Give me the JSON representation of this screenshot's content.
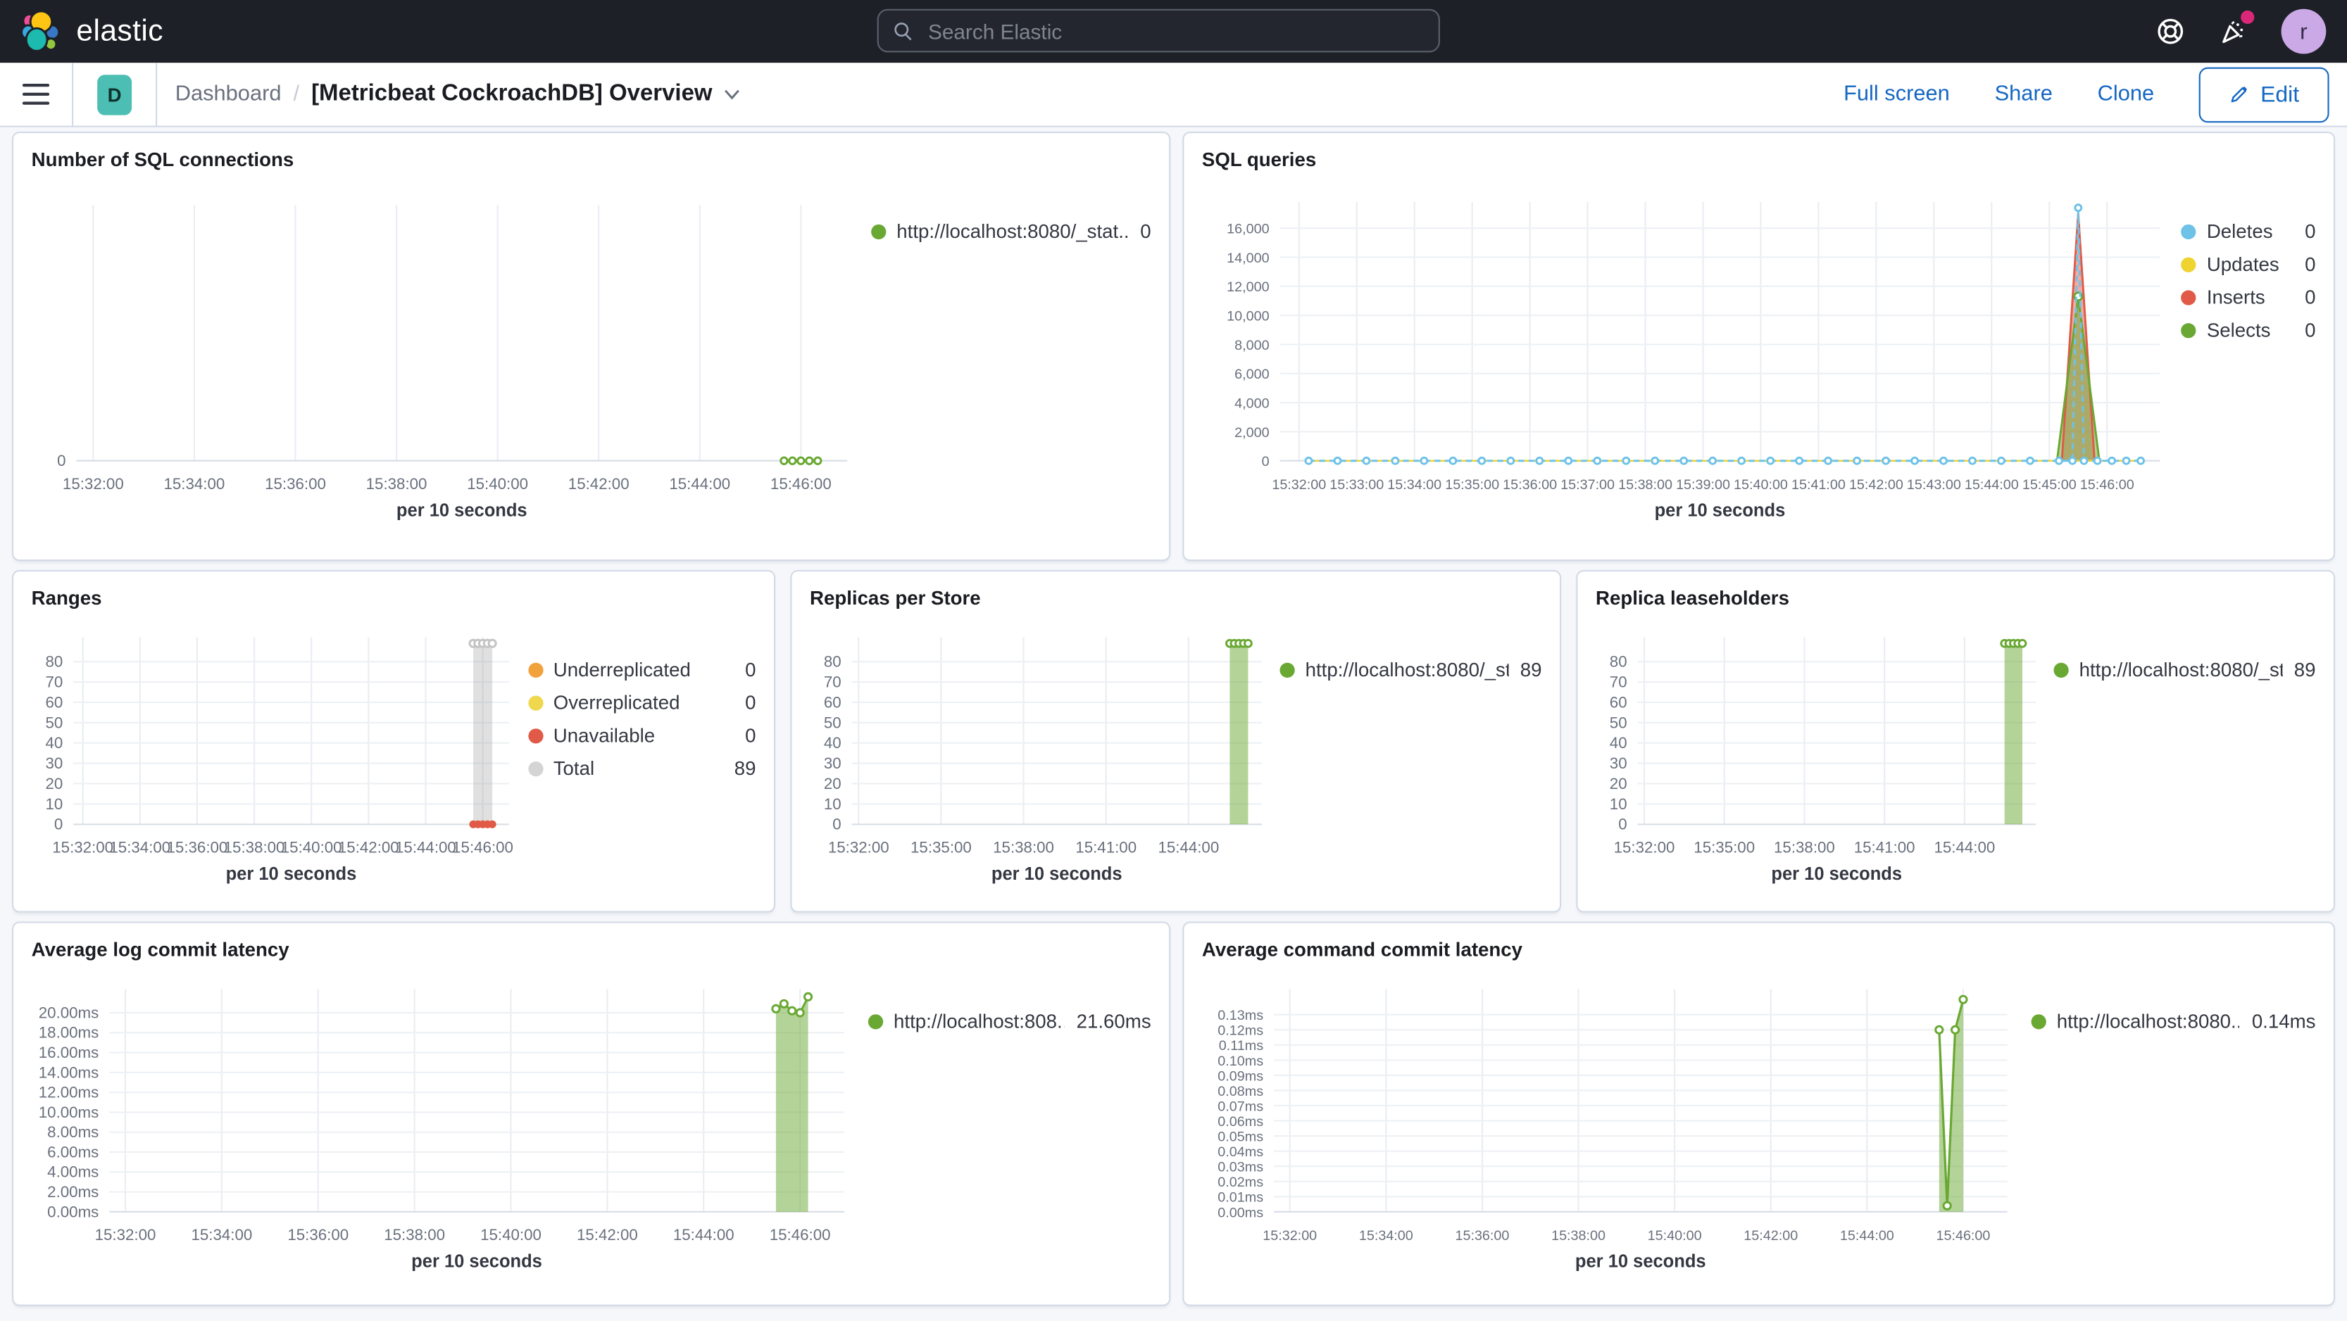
{
  "colors": {
    "accent": "#1567C3",
    "header_bg": "#1D2026",
    "panel_border": "#D3DAE6",
    "page_bg": "#F5F7FA",
    "series_green": "#69A832",
    "series_blue": "#6EC2E8",
    "series_yellow": "#EFD331",
    "series_red": "#E05A47",
    "series_orange": "#F2A23C",
    "series_gray": "#D4D4D4",
    "badge_teal": "#4CBEB4",
    "notification_pink": "#DB2777",
    "avatar_purple": "#CBA9E6"
  },
  "header": {
    "logo_text": "elastic",
    "search_placeholder": "Search Elastic",
    "avatar_initial": "r"
  },
  "nav": {
    "badge_initial": "D",
    "breadcrumb_root": "Dashboard",
    "separator": "/",
    "title": "[Metricbeat CockroachDB] Overview",
    "actions": [
      "Full screen",
      "Share",
      "Clone"
    ],
    "edit_label": "Edit"
  },
  "panels": [
    {
      "title": "Number of SQL connections",
      "legend": [
        {
          "label": "http://localhost:8080/_stat...",
          "value": "0",
          "color": "#69A832"
        }
      ]
    },
    {
      "title": "SQL queries",
      "legend": [
        {
          "label": "Deletes",
          "value": "0",
          "color": "#6EC2E8"
        },
        {
          "label": "Updates",
          "value": "0",
          "color": "#EFD331"
        },
        {
          "label": "Inserts",
          "value": "0",
          "color": "#E05A47"
        },
        {
          "label": "Selects",
          "value": "0",
          "color": "#69A832"
        }
      ]
    },
    {
      "title": "Ranges",
      "legend": [
        {
          "label": "Underreplicated",
          "value": "0",
          "color": "#F2A23C"
        },
        {
          "label": "Overreplicated",
          "value": "0",
          "color": "#EFD84D"
        },
        {
          "label": "Unavailable",
          "value": "0",
          "color": "#E05A47"
        },
        {
          "label": "Total",
          "value": "89",
          "color": "#D4D4D4"
        }
      ]
    },
    {
      "title": "Replicas per Store",
      "legend": [
        {
          "label": "http://localhost:8080/_sta...",
          "value": "89",
          "color": "#69A832"
        }
      ]
    },
    {
      "title": "Replica leaseholders",
      "legend": [
        {
          "label": "http://localhost:8080/_sta...",
          "value": "89",
          "color": "#69A832"
        }
      ]
    },
    {
      "title": "Average log commit latency",
      "legend": [
        {
          "label": "http://localhost:808...",
          "value": "21.60ms",
          "color": "#69A832"
        }
      ]
    },
    {
      "title": "Average command commit latency",
      "legend": [
        {
          "label": "http://localhost:8080...",
          "value": "0.14ms",
          "color": "#69A832"
        }
      ]
    }
  ],
  "chart_data": [
    {
      "panel": "Number of SQL connections",
      "type": "line",
      "xlabel": "per 10 seconds",
      "x_range": [
        "15:31:40",
        "15:46:55"
      ],
      "xticks": [
        "15:32:00",
        "15:34:00",
        "15:36:00",
        "15:38:00",
        "15:40:00",
        "15:42:00",
        "15:44:00",
        "15:46:00"
      ],
      "y_max": 1,
      "yticks": [
        {
          "v": 0,
          "label": "0"
        }
      ],
      "series": [
        {
          "name": "http://localhost:8080/_stat...",
          "color": "#69A832",
          "width": 1.4,
          "markers": "hollow",
          "r": 2.2,
          "points": [
            [
              "15:45:40",
              0
            ],
            [
              "15:45:50",
              0
            ],
            [
              "15:46:00",
              0
            ],
            [
              "15:46:10",
              0
            ],
            [
              "15:46:20",
              0
            ]
          ]
        }
      ]
    },
    {
      "panel": "SQL queries",
      "type": "line",
      "xlabel": "per 10 seconds",
      "small_ticks": true,
      "x_range": [
        "15:31:40",
        "15:46:55"
      ],
      "xticks": [
        "15:32:00",
        "15:33:00",
        "15:34:00",
        "15:35:00",
        "15:36:00",
        "15:37:00",
        "15:38:00",
        "15:39:00",
        "15:40:00",
        "15:41:00",
        "15:42:00",
        "15:43:00",
        "15:44:00",
        "15:45:00",
        "15:46:00"
      ],
      "y_max": 17800,
      "yticks": [
        {
          "v": 0,
          "label": "0"
        },
        {
          "v": 2000,
          "label": "2,000"
        },
        {
          "v": 4000,
          "label": "4,000"
        },
        {
          "v": 6000,
          "label": "6,000"
        },
        {
          "v": 8000,
          "label": "8,000"
        },
        {
          "v": 10000,
          "label": "10,000"
        },
        {
          "v": 12000,
          "label": "12,000"
        },
        {
          "v": 14000,
          "label": "14,000"
        },
        {
          "v": 16000,
          "label": "16,000"
        }
      ],
      "series": [
        {
          "name": "Inserts",
          "color": "#E05A47",
          "fill": "rgba(224,90,71,0.5)",
          "width": 1.4,
          "points": [
            [
              "15:45:13",
              0
            ],
            [
              "15:45:30",
              17000
            ],
            [
              "15:45:47",
              0
            ]
          ]
        },
        {
          "name": "Selects",
          "color": "#69A832",
          "fill": "rgba(105,168,50,0.5)",
          "width": 1.4,
          "points": [
            [
              "15:45:08",
              0
            ],
            [
              "15:45:30",
              11300
            ],
            [
              "15:45:52",
              0
            ]
          ]
        },
        {
          "name": "Selects peak marker",
          "color": "#69A832",
          "line": false,
          "markers": "hollow",
          "r": 2.6,
          "points": [
            [
              "15:45:30",
              11300
            ]
          ]
        },
        {
          "name": "Updates",
          "color": "#EFD331",
          "width": 1.2,
          "points": [
            [
              "15:32:10",
              0
            ],
            [
              "15:46:35",
              0
            ]
          ]
        },
        {
          "name": "Deletes",
          "color": "#6EC2E8",
          "width": 1.4,
          "dash": true,
          "markers": "hollow",
          "r": 2.1,
          "points": [
            [
              "15:32:10",
              0
            ],
            [
              "15:32:40",
              0
            ],
            [
              "15:33:10",
              0
            ],
            [
              "15:33:40",
              0
            ],
            [
              "15:34:10",
              0
            ],
            [
              "15:34:40",
              0
            ],
            [
              "15:35:10",
              0
            ],
            [
              "15:35:40",
              0
            ],
            [
              "15:36:10",
              0
            ],
            [
              "15:36:40",
              0
            ],
            [
              "15:37:10",
              0
            ],
            [
              "15:37:40",
              0
            ],
            [
              "15:38:10",
              0
            ],
            [
              "15:38:40",
              0
            ],
            [
              "15:39:10",
              0
            ],
            [
              "15:39:40",
              0
            ],
            [
              "15:40:10",
              0
            ],
            [
              "15:40:40",
              0
            ],
            [
              "15:41:10",
              0
            ],
            [
              "15:41:40",
              0
            ],
            [
              "15:42:10",
              0
            ],
            [
              "15:42:40",
              0
            ],
            [
              "15:43:10",
              0
            ],
            [
              "15:43:40",
              0
            ],
            [
              "15:44:10",
              0
            ],
            [
              "15:44:40",
              0
            ],
            [
              "15:45:10",
              0
            ],
            [
              "15:45:24",
              0
            ],
            [
              "15:45:30",
              17400
            ],
            [
              "15:45:36",
              0
            ],
            [
              "15:45:50",
              0
            ],
            [
              "15:46:05",
              0
            ],
            [
              "15:46:20",
              0
            ],
            [
              "15:46:35",
              0
            ]
          ]
        }
      ]
    },
    {
      "panel": "Ranges",
      "type": "area",
      "xlabel": "per 10 seconds",
      "x_range": [
        "15:31:40",
        "15:46:55"
      ],
      "xticks": [
        "15:32:00",
        "15:34:00",
        "15:36:00",
        "15:38:00",
        "15:40:00",
        "15:42:00",
        "15:44:00",
        "15:46:00"
      ],
      "y_max": 92,
      "yticks": [
        {
          "v": 0,
          "label": "0"
        },
        {
          "v": 10,
          "label": "10"
        },
        {
          "v": 20,
          "label": "20"
        },
        {
          "v": 30,
          "label": "30"
        },
        {
          "v": 40,
          "label": "40"
        },
        {
          "v": 50,
          "label": "50"
        },
        {
          "v": 60,
          "label": "60"
        },
        {
          "v": 70,
          "label": "70"
        },
        {
          "v": 80,
          "label": "80"
        }
      ],
      "series": [
        {
          "name": "Total",
          "color": "#C4C4C4",
          "fill": "rgba(132,132,132,0.25)",
          "line": false,
          "markers": "hollow",
          "r": 2.4,
          "points": [
            [
              "15:45:40",
              89
            ],
            [
              "15:45:50",
              89
            ],
            [
              "15:46:00",
              89
            ],
            [
              "15:46:10",
              89
            ],
            [
              "15:46:20",
              89
            ]
          ]
        },
        {
          "name": "Underreplicated",
          "color": "#F2A23C",
          "width": 2,
          "markers": "solid",
          "r": 2.6,
          "points": [
            [
              "15:45:40",
              0
            ],
            [
              "15:45:50",
              0
            ],
            [
              "15:46:00",
              0
            ],
            [
              "15:46:10",
              0
            ],
            [
              "15:46:20",
              0
            ]
          ]
        },
        {
          "name": "Unavailable",
          "color": "#E05A47",
          "width": 2,
          "markers": "solid",
          "r": 2.6,
          "points": [
            [
              "15:45:40",
              0
            ],
            [
              "15:45:50",
              0
            ],
            [
              "15:46:00",
              0
            ],
            [
              "15:46:10",
              0
            ],
            [
              "15:46:20",
              0
            ]
          ]
        }
      ]
    },
    {
      "panel": "Replicas per Store",
      "type": "area",
      "xlabel": "per 10 seconds",
      "x_range": [
        "15:31:45",
        "15:46:40"
      ],
      "xticks": [
        "15:32:00",
        "15:35:00",
        "15:38:00",
        "15:41:00",
        "15:44:00"
      ],
      "y_max": 92,
      "yticks": [
        {
          "v": 0,
          "label": "0"
        },
        {
          "v": 10,
          "label": "10"
        },
        {
          "v": 20,
          "label": "20"
        },
        {
          "v": 30,
          "label": "30"
        },
        {
          "v": 40,
          "label": "40"
        },
        {
          "v": 50,
          "label": "50"
        },
        {
          "v": 60,
          "label": "60"
        },
        {
          "v": 70,
          "label": "70"
        },
        {
          "v": 80,
          "label": "80"
        }
      ],
      "series": [
        {
          "name": "http://localhost:8080/_sta...",
          "color": "#69A832",
          "fill": "rgba(105,168,50,0.5)",
          "width": 1.2,
          "markers": "hollow",
          "r": 2.3,
          "points": [
            [
              "15:45:30",
              89
            ],
            [
              "15:45:40",
              89
            ],
            [
              "15:45:50",
              89
            ],
            [
              "15:46:00",
              89
            ],
            [
              "15:46:10",
              89
            ]
          ]
        }
      ]
    },
    {
      "panel": "Replica leaseholders",
      "type": "area",
      "xlabel": "per 10 seconds",
      "x_range": [
        "15:31:45",
        "15:46:40"
      ],
      "xticks": [
        "15:32:00",
        "15:35:00",
        "15:38:00",
        "15:41:00",
        "15:44:00"
      ],
      "y_max": 92,
      "yticks": [
        {
          "v": 0,
          "label": "0"
        },
        {
          "v": 10,
          "label": "10"
        },
        {
          "v": 20,
          "label": "20"
        },
        {
          "v": 30,
          "label": "30"
        },
        {
          "v": 40,
          "label": "40"
        },
        {
          "v": 50,
          "label": "50"
        },
        {
          "v": 60,
          "label": "60"
        },
        {
          "v": 70,
          "label": "70"
        },
        {
          "v": 80,
          "label": "80"
        }
      ],
      "series": [
        {
          "name": "http://localhost:8080/_sta...",
          "color": "#69A832",
          "fill": "rgba(105,168,50,0.5)",
          "width": 1.2,
          "markers": "hollow",
          "r": 2.3,
          "points": [
            [
              "15:45:30",
              89
            ],
            [
              "15:45:40",
              89
            ],
            [
              "15:45:50",
              89
            ],
            [
              "15:46:00",
              89
            ],
            [
              "15:46:10",
              89
            ]
          ]
        }
      ]
    },
    {
      "panel": "Average log commit latency",
      "type": "area",
      "xlabel": "per 10 seconds",
      "x_range": [
        "15:31:40",
        "15:46:55"
      ],
      "xticks": [
        "15:32:00",
        "15:34:00",
        "15:36:00",
        "15:38:00",
        "15:40:00",
        "15:42:00",
        "15:44:00",
        "15:46:00"
      ],
      "y_max": 22.4,
      "yticks": [
        {
          "v": 0,
          "label": "0.00ms"
        },
        {
          "v": 2,
          "label": "2.00ms"
        },
        {
          "v": 4,
          "label": "4.00ms"
        },
        {
          "v": 6,
          "label": "6.00ms"
        },
        {
          "v": 8,
          "label": "8.00ms"
        },
        {
          "v": 10,
          "label": "10.00ms"
        },
        {
          "v": 12,
          "label": "12.00ms"
        },
        {
          "v": 14,
          "label": "14.00ms"
        },
        {
          "v": 16,
          "label": "16.00ms"
        },
        {
          "v": 18,
          "label": "18.00ms"
        },
        {
          "v": 20,
          "label": "20.00ms"
        }
      ],
      "series": [
        {
          "name": "http://localhost:808...",
          "color": "#69A832",
          "fill": "rgba(105,168,50,0.5)",
          "width": 1.4,
          "markers": "hollow",
          "r": 2.4,
          "points": [
            [
              "15:45:30",
              20.4
            ],
            [
              "15:45:40",
              20.9
            ],
            [
              "15:45:50",
              20.2
            ],
            [
              "15:46:00",
              20.0
            ],
            [
              "15:46:10",
              21.6
            ]
          ]
        }
      ]
    },
    {
      "panel": "Average command commit latency",
      "type": "area",
      "xlabel": "per 10 seconds",
      "small_ticks": true,
      "x_range": [
        "15:31:40",
        "15:46:55"
      ],
      "xticks": [
        "15:32:00",
        "15:34:00",
        "15:36:00",
        "15:38:00",
        "15:40:00",
        "15:42:00",
        "15:44:00",
        "15:46:00"
      ],
      "y_max": 0.147,
      "yticks": [
        {
          "v": 0,
          "label": "0.00ms"
        },
        {
          "v": 0.01,
          "label": "0.01ms"
        },
        {
          "v": 0.02,
          "label": "0.02ms"
        },
        {
          "v": 0.03,
          "label": "0.03ms"
        },
        {
          "v": 0.04,
          "label": "0.04ms"
        },
        {
          "v": 0.05,
          "label": "0.05ms"
        },
        {
          "v": 0.06,
          "label": "0.06ms"
        },
        {
          "v": 0.07,
          "label": "0.07ms"
        },
        {
          "v": 0.08,
          "label": "0.08ms"
        },
        {
          "v": 0.09,
          "label": "0.09ms"
        },
        {
          "v": 0.1,
          "label": "0.10ms"
        },
        {
          "v": 0.11,
          "label": "0.11ms"
        },
        {
          "v": 0.12,
          "label": "0.12ms"
        },
        {
          "v": 0.13,
          "label": "0.13ms"
        }
      ],
      "series": [
        {
          "name": "http://localhost:8080...",
          "color": "#69A832",
          "fill": "rgba(105,168,50,0.5)",
          "width": 1.5,
          "markers": "hollow",
          "r": 2.4,
          "points": [
            [
              "15:45:30",
              0.12
            ],
            [
              "15:45:40",
              0.004
            ],
            [
              "15:45:50",
              0.12
            ],
            [
              "15:46:00",
              0.14
            ]
          ]
        }
      ]
    }
  ]
}
